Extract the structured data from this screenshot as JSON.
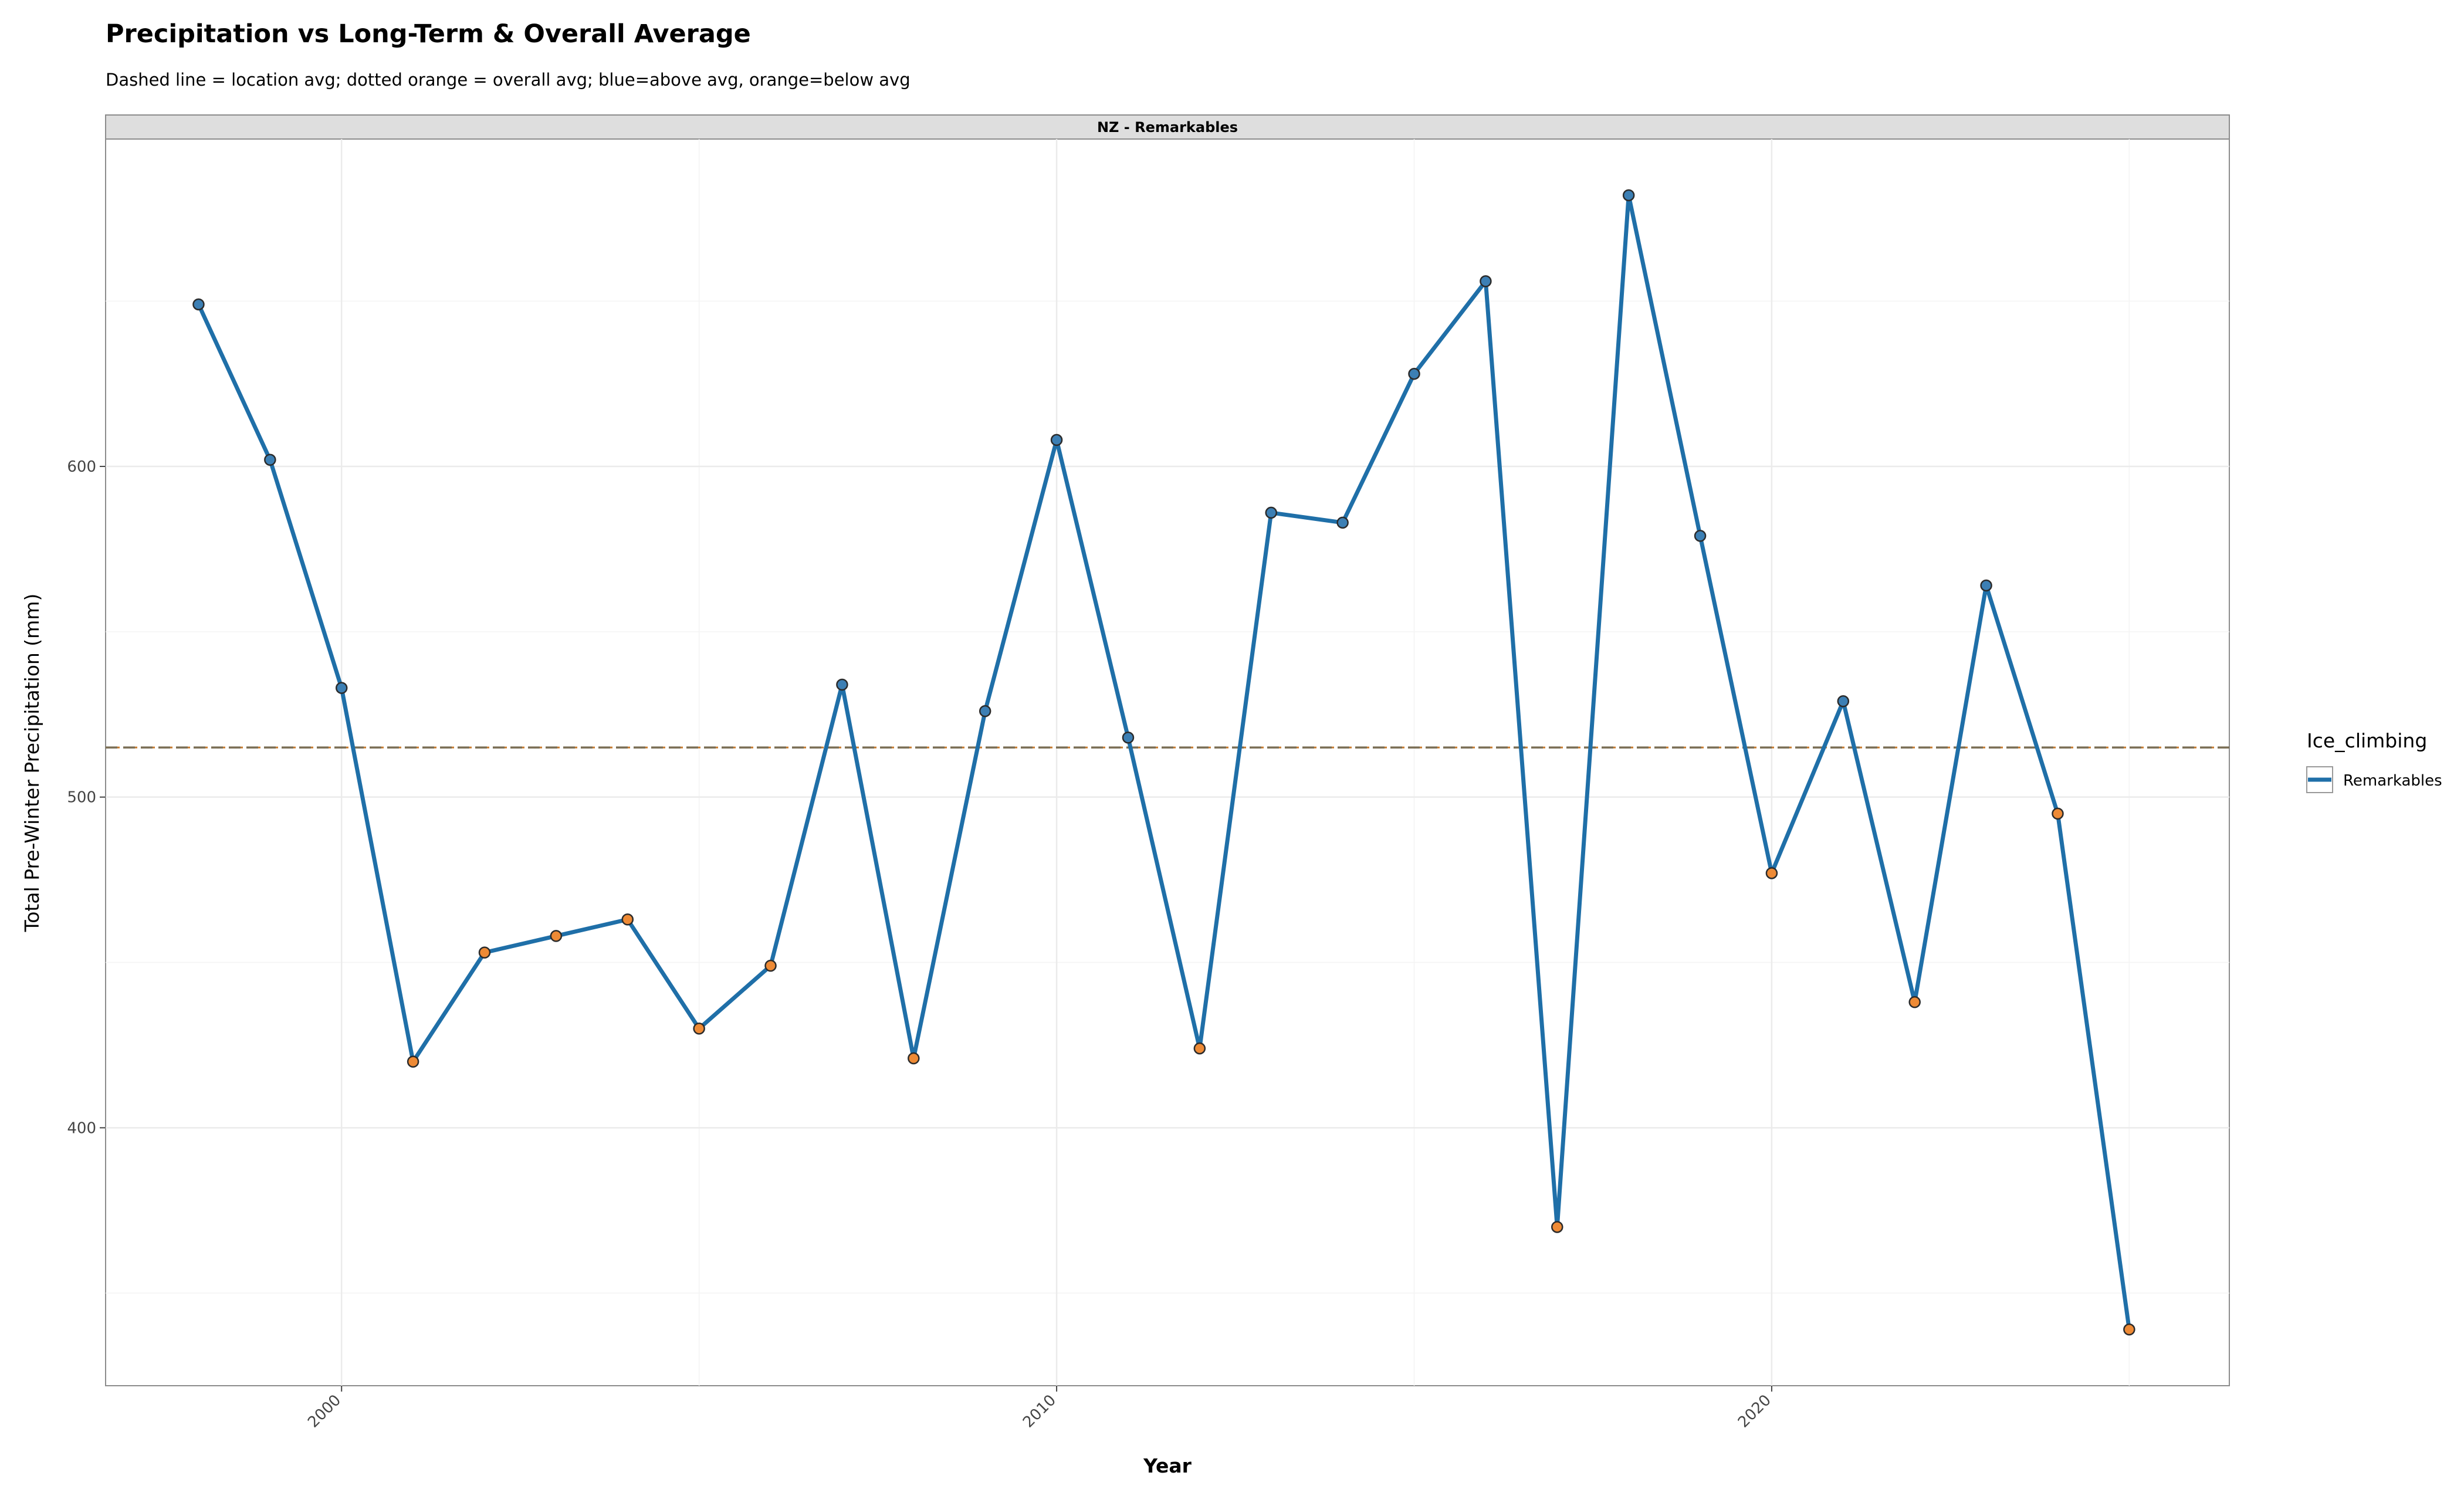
{
  "chart_data": {
    "type": "line",
    "title": "Precipitation vs Long-Term & Overall Average",
    "subtitle": "Dashed line = location avg; dotted orange = overall avg; blue=above avg, orange=below avg",
    "facet_label": "NZ - Remarkables",
    "xlabel": "Year",
    "ylabel": "Total Pre-Winter Precipitation (mm)",
    "xlim": [
      1996.7,
      2026.4
    ],
    "ylim": [
      322,
      699
    ],
    "x_ticks": [
      2000,
      2010,
      2020
    ],
    "y_ticks": [
      400,
      500,
      600
    ],
    "grid": true,
    "legend": {
      "title": "Ice_climbing",
      "position": "right",
      "entries": [
        "Remarkables"
      ]
    },
    "location_avg": 515,
    "overall_avg": 515,
    "colors": {
      "line": "#1f6fa8",
      "above": "#3c7fb4",
      "below": "#ee8a35",
      "location_avg_line": "#7a6e55",
      "overall_avg_line": "#c77a2e",
      "grid": "#ebebeb",
      "strip": "#dedede"
    },
    "series": [
      {
        "name": "Remarkables",
        "x": [
          1998,
          1999,
          2000,
          2001,
          2002,
          2003,
          2004,
          2005,
          2006,
          2007,
          2008,
          2009,
          2010,
          2011,
          2012,
          2013,
          2014,
          2015,
          2016,
          2017,
          2018,
          2019,
          2020,
          2021,
          2022,
          2023,
          2024,
          2025
        ],
        "y": [
          649,
          602,
          533,
          420,
          453,
          458,
          463,
          430,
          449,
          534,
          421,
          526,
          608,
          518,
          424,
          586,
          583,
          628,
          656,
          370,
          682,
          579,
          477,
          529,
          438,
          564,
          495,
          339
        ]
      }
    ]
  }
}
